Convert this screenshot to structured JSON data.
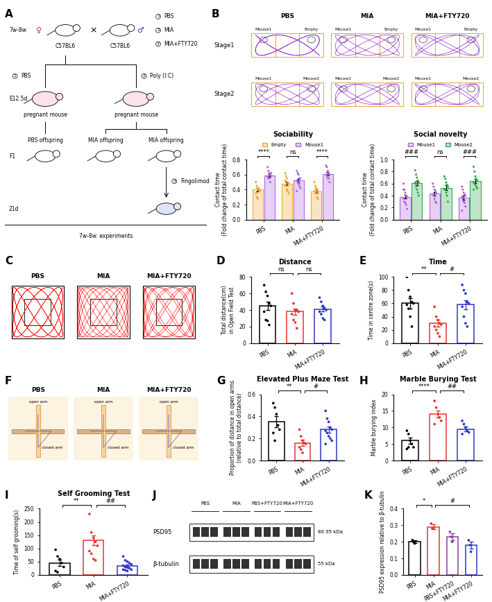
{
  "panel_labels": [
    "A",
    "B",
    "C",
    "D",
    "E",
    "F",
    "G",
    "H",
    "I",
    "J",
    "K"
  ],
  "diagram_A": {
    "age": "7w-8w",
    "female": "♀",
    "male": "♂",
    "cross": "×",
    "strain": "C57BL6",
    "groups": [
      {
        "num": "1",
        "label": "PBS"
      },
      {
        "num": "2",
        "label": "MIA"
      },
      {
        "num": "3",
        "label": "MIA+FTY720"
      }
    ],
    "treatments": [
      {
        "num": "1",
        "label": "PBS"
      },
      {
        "num": "2",
        "label": "Poly (I:C)"
      }
    ],
    "day": "E12.5d",
    "pregnant": "pregnant mouse",
    "offspring": [
      "PBS offspring",
      "MIA offspring",
      "MIA offspring"
    ],
    "generation": "F1",
    "drug": {
      "num": "3",
      "label": "Fingolimod"
    },
    "drug_day": "21d",
    "experiments": "7w-8w: experiments"
  },
  "tracks_B": {
    "groups": [
      "PBS",
      "MIA",
      "MIA+FTY720"
    ],
    "stages": [
      {
        "name": "Stage1",
        "left": "Mouse1",
        "right": "Empty"
      },
      {
        "name": "Stage2",
        "left": "Mouse1",
        "right": "Mouse2"
      }
    ]
  },
  "tracks_C": {
    "groups": [
      "PBS",
      "MIA",
      "MIA+FTY720"
    ]
  },
  "maze_F": {
    "groups": [
      "PBS",
      "MIA",
      "MIA+FTY720"
    ],
    "open_arm": "open arm",
    "closed_arm": "closed arm"
  },
  "blot_J": {
    "groups": [
      "PBS",
      "MIA",
      "PBS+FTY720",
      "MIA+FTY720"
    ],
    "rows": [
      {
        "name": "PSD95",
        "size": "80.95 kDa"
      },
      {
        "name": "β-tubulin",
        "size": "55 kDa"
      }
    ]
  },
  "chart_data": [
    {
      "type": "grouped_bar",
      "title": "Sociability",
      "ylabel": "Contact time\n(Fold change of total contact time)",
      "categories": [
        "PBS",
        "MIA",
        "MIA+FTY720"
      ],
      "legend": "top",
      "ylim": [
        0,
        0.8
      ],
      "yticks": [
        {
          "value": 0,
          "label": "0.0"
        },
        0.2,
        0.4,
        0.6,
        0.8
      ],
      "series": [
        {
          "name": "Empty",
          "color": "#f0a830",
          "values": [
            0.4,
            0.48,
            0.38
          ],
          "errors": [
            0.02,
            0.025,
            0.02
          ],
          "points": [
            [
              0.5,
              0.45,
              0.42,
              0.4,
              0.38,
              0.35,
              0.3,
              0.28,
              0.42,
              0.38
            ],
            [
              0.62,
              0.58,
              0.55,
              0.5,
              0.48,
              0.45,
              0.45,
              0.4,
              0.38,
              0.35,
              0.52
            ],
            [
              0.5,
              0.45,
              0.42,
              0.4,
              0.38,
              0.38,
              0.35,
              0.35,
              0.3,
              0.28
            ]
          ]
        },
        {
          "name": "Mouse1",
          "color": "#b065e0",
          "values": [
            0.59,
            0.52,
            0.61
          ],
          "errors": [
            0.02,
            0.025,
            0.02
          ],
          "points": [
            [
              0.7,
              0.65,
              0.62,
              0.6,
              0.58,
              0.57,
              0.55,
              0.55,
              0.5,
              0.62
            ],
            [
              0.65,
              0.62,
              0.6,
              0.55,
              0.55,
              0.52,
              0.5,
              0.48,
              0.45,
              0.42,
              0.38
            ],
            [
              0.72,
              0.7,
              0.65,
              0.62,
              0.6,
              0.6,
              0.58,
              0.55,
              0.55,
              0.5
            ]
          ]
        }
      ],
      "annotations": [
        {
          "text": "****",
          "group": 0
        },
        {
          "text": "ns",
          "group": 1
        },
        {
          "text": "****",
          "group": 2
        }
      ]
    },
    {
      "type": "grouped_bar",
      "title": "Social novelty",
      "ylabel": "Contact time\n(Fold change of total contact time)",
      "categories": [
        "PBS",
        "MIA",
        "MIA+FTY720"
      ],
      "legend": "top",
      "ylim": [
        0,
        1.0
      ],
      "yticks": [
        {
          "value": 0,
          "label": "0.0"
        },
        0.2,
        0.4,
        0.6,
        0.8,
        {
          "value": 1.0,
          "label": "1.0"
        }
      ],
      "series": [
        {
          "name": "Mouse1",
          "color": "#b065e0",
          "values": [
            0.38,
            0.43,
            0.37
          ],
          "errors": [
            0.03,
            0.03,
            0.035
          ],
          "points": [
            [
              0.6,
              0.5,
              0.45,
              0.4,
              0.38,
              0.35,
              0.3,
              0.28,
              0.25,
              0.18,
              0.5
            ],
            [
              0.6,
              0.55,
              0.5,
              0.48,
              0.45,
              0.42,
              0.4,
              0.35,
              0.3,
              0.28
            ],
            [
              0.55,
              0.5,
              0.45,
              0.42,
              0.4,
              0.38,
              0.35,
              0.3,
              0.28,
              0.22,
              0.15
            ]
          ]
        },
        {
          "name": "Mouse2",
          "color": "#2fa84f",
          "values": [
            0.61,
            0.53,
            0.64
          ],
          "errors": [
            0.035,
            0.04,
            0.035
          ],
          "points": [
            [
              0.82,
              0.75,
              0.7,
              0.65,
              0.62,
              0.6,
              0.55,
              0.5,
              0.45,
              0.4,
              0.62
            ],
            [
              0.72,
              0.68,
              0.62,
              0.58,
              0.55,
              0.5,
              0.5,
              0.45,
              0.4,
              0.3
            ],
            [
              0.88,
              0.8,
              0.72,
              0.68,
              0.65,
              0.62,
              0.6,
              0.58,
              0.55,
              0.52,
              0.5
            ]
          ]
        }
      ],
      "annotations": [
        {
          "text": "###",
          "group": 0
        },
        {
          "text": "ns",
          "group": 1
        },
        {
          "text": "###",
          "group": 2
        }
      ]
    },
    {
      "type": "bar",
      "title": "Distance",
      "ylabel": "Total distance(cm)\nin Open Field Test",
      "categories": [
        "PBS",
        "MIA",
        "MIA+FTY720"
      ],
      "colors": [
        "#000000",
        "#e8322c",
        "#2b35c9"
      ],
      "values": [
        45,
        38,
        41
      ],
      "errors": [
        5,
        4,
        3
      ],
      "points": [
        [
          70,
          62,
          57,
          48,
          45,
          38,
          28,
          27,
          22
        ],
        [
          60,
          48,
          40,
          40,
          38,
          35,
          28,
          25,
          18
        ],
        [
          55,
          50,
          45,
          42,
          40,
          38,
          35,
          30,
          28
        ]
      ],
      "ylim": [
        0,
        80
      ],
      "yticks": [
        0,
        20,
        40,
        60,
        80
      ],
      "annotations": [
        {
          "text": "ns",
          "between": [
            0,
            1
          ]
        },
        {
          "text": "ns",
          "between": [
            1,
            2
          ]
        }
      ]
    },
    {
      "type": "bar",
      "title": "Time",
      "ylabel": "Time in centre zone(s)",
      "categories": [
        "PBS",
        "MIA",
        "MIA+FTY720"
      ],
      "colors": [
        "#000000",
        "#e8322c",
        "#2b35c9"
      ],
      "values": [
        60,
        30,
        58
      ],
      "errors": [
        8,
        5,
        7
      ],
      "points": [
        [
          100,
          80,
          70,
          62,
          60,
          58,
          52,
          40,
          25
        ],
        [
          55,
          40,
          35,
          30,
          28,
          25,
          20,
          15,
          10
        ],
        [
          88,
          80,
          75,
          62,
          60,
          55,
          40,
          30,
          25
        ]
      ],
      "ylim": [
        0,
        100
      ],
      "yticks": [
        0,
        20,
        40,
        60,
        80,
        100
      ],
      "annotations": [
        {
          "text": "**",
          "between": [
            0,
            1
          ]
        },
        {
          "text": "#",
          "between": [
            1,
            2
          ]
        }
      ]
    },
    {
      "type": "bar",
      "title": "Elevated Plus Maze Test",
      "ylabel": "Proportion of distance in open arms\n(relative to total distance)",
      "categories": [
        "PBS",
        "MIA",
        "MIA+FTY720"
      ],
      "colors": [
        "#000000",
        "#e8322c",
        "#2b35c9"
      ],
      "values": [
        0.35,
        0.16,
        0.28
      ],
      "errors": [
        0.05,
        0.03,
        0.03
      ],
      "points": [
        [
          0.52,
          0.48,
          0.42,
          0.32,
          0.28,
          0.25,
          0.18
        ],
        [
          0.28,
          0.22,
          0.18,
          0.16,
          0.15,
          0.12,
          0.1,
          0.07
        ],
        [
          0.45,
          0.38,
          0.35,
          0.3,
          0.28,
          0.27,
          0.25,
          0.22,
          0.2,
          0.18,
          0.15
        ]
      ],
      "ylim": [
        0,
        0.6
      ],
      "yticks": [
        {
          "value": 0,
          "label": "0.0"
        },
        0.2,
        0.4,
        0.6
      ],
      "annotations": [
        {
          "text": "**",
          "between": [
            0,
            1
          ]
        },
        {
          "text": "#",
          "between": [
            1,
            2
          ]
        }
      ]
    },
    {
      "type": "bar",
      "title": "Marble Burying Test",
      "ylabel": "Marble burying index",
      "categories": [
        "PBS",
        "MIA",
        "MIA+FTY720"
      ],
      "colors": [
        "#000000",
        "#e8322c",
        "#2b35c9"
      ],
      "values": [
        6,
        14,
        9.5
      ],
      "errors": [
        0.9,
        1.1,
        0.7
      ],
      "points": [
        [
          9,
          8,
          6,
          5,
          4,
          3.5,
          4
        ],
        [
          18,
          16,
          14,
          13,
          12,
          11
        ],
        [
          12,
          11,
          10,
          9,
          8.5,
          8
        ]
      ],
      "ylim": [
        0,
        20
      ],
      "yticks": [
        0,
        5,
        10,
        15,
        20
      ],
      "annotations": [
        {
          "text": "****",
          "between": [
            0,
            1
          ]
        },
        {
          "text": "##",
          "between": [
            1,
            2
          ]
        }
      ]
    },
    {
      "type": "bar",
      "title": "Self Grooming Test",
      "ylabel": "Time of self grooming(s)",
      "categories": [
        "PBS",
        "MIA",
        "MIA+FTY720"
      ],
      "colors": [
        "#000000",
        "#e8322c",
        "#2b35c9"
      ],
      "values": [
        45,
        130,
        35
      ],
      "errors": [
        12,
        18,
        5
      ],
      "points": [
        [
          95,
          70,
          60,
          45,
          30,
          15,
          10
        ],
        [
          230,
          160,
          140,
          125,
          110,
          90,
          80,
          60,
          55
        ],
        [
          70,
          55,
          50,
          45,
          40,
          35,
          30,
          28,
          25,
          20,
          20,
          18,
          15
        ]
      ],
      "ylim": [
        0,
        250
      ],
      "yticks": [
        0,
        50,
        100,
        150,
        200,
        250
      ],
      "annotations": [
        {
          "text": "**",
          "between": [
            0,
            1
          ]
        },
        {
          "text": "##",
          "between": [
            1,
            2
          ]
        }
      ]
    },
    {
      "type": "bar",
      "ylabel": "PSD95 expression relative to β-tubulin",
      "categories": [
        "PBS",
        "MIA",
        "PBS+FTY720",
        "MIA+FTY720"
      ],
      "colors": [
        "#000000",
        "#e8322c",
        "#8e3a9e",
        "#2b35c9"
      ],
      "values": [
        0.2,
        0.29,
        0.23,
        0.18
      ],
      "errors": [
        0.008,
        0.015,
        0.02,
        0.02
      ],
      "points": [
        [
          0.21,
          0.2,
          0.19
        ],
        [
          0.31,
          0.28,
          0.28
        ],
        [
          0.26,
          0.23,
          0.2
        ],
        [
          0.21,
          0.18,
          0.14
        ]
      ],
      "ylim": [
        0,
        0.4
      ],
      "yticks": [
        {
          "value": 0,
          "label": "0.0"
        },
        0.1,
        0.2,
        0.3,
        0.4
      ],
      "annotations": [
        {
          "text": "*",
          "between": [
            0,
            1
          ]
        },
        {
          "text": "#",
          "between": [
            1,
            3
          ]
        }
      ]
    }
  ]
}
